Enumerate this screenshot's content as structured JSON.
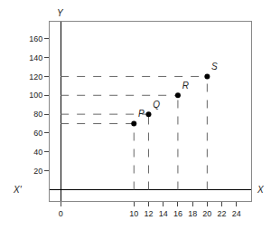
{
  "chart_data": {
    "type": "scatter",
    "x": [
      10,
      12,
      16,
      20
    ],
    "values": [
      70,
      80,
      100,
      120
    ],
    "annotations": [
      "P",
      "Q",
      "R",
      "S"
    ],
    "x_label": "X",
    "x_prime_label": "X'",
    "y_label": "Y",
    "xlim": [
      -1.5,
      26
    ],
    "ylim": [
      -12,
      178
    ],
    "xticks": [
      0,
      10,
      12,
      14,
      16,
      18,
      20,
      22,
      24
    ],
    "yticks": [
      20,
      40,
      60,
      80,
      100,
      120,
      140,
      160
    ],
    "color": "black",
    "marker": "circle",
    "line_style": "dashed",
    "grid": false
  }
}
